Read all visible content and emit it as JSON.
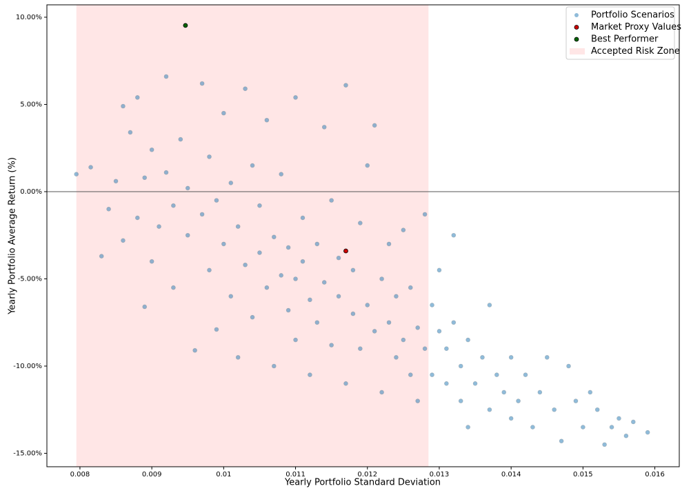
{
  "chart_data": {
    "type": "scatter",
    "xlabel": "Yearly Portfolio Standard Deviation",
    "ylabel": "Yearly Portfolio Average Return (%)",
    "xlim": [
      0.00754,
      0.01634
    ],
    "ylim": [
      -15.77,
      10.71
    ],
    "xticks": [
      0.008,
      0.009,
      0.01,
      0.011,
      0.012,
      0.013,
      0.014,
      0.015,
      0.016
    ],
    "yticks": [
      {
        "value": -15,
        "label": "-15.00%"
      },
      {
        "value": -10,
        "label": "-10.00%"
      },
      {
        "value": -5,
        "label": "-5.00%"
      },
      {
        "value": 0,
        "label": "0.00%"
      },
      {
        "value": 5,
        "label": "5.00%"
      },
      {
        "value": 10,
        "label": "10.00%"
      }
    ],
    "hline": 0,
    "legend": "upper right",
    "risk_zone": {
      "name": "Accepted Risk Zone",
      "color": "#ffe6e6",
      "xmin": 0.00795,
      "xmax": 0.01285
    },
    "series": [
      {
        "name": "Portfolio Scenarios",
        "color": "#1f77b4",
        "x": [
          0.00795,
          0.00815,
          0.0083,
          0.0084,
          0.0085,
          0.0086,
          0.0086,
          0.0087,
          0.0088,
          0.0088,
          0.0089,
          0.0089,
          0.009,
          0.009,
          0.0091,
          0.0092,
          0.0092,
          0.0093,
          0.0093,
          0.0094,
          0.0095,
          0.0095,
          0.0096,
          0.0097,
          0.0097,
          0.0098,
          0.0098,
          0.0099,
          0.0099,
          0.01,
          0.01,
          0.0101,
          0.0101,
          0.0102,
          0.0102,
          0.0103,
          0.0103,
          0.0104,
          0.0104,
          0.0105,
          0.0105,
          0.0106,
          0.0106,
          0.0107,
          0.0107,
          0.0108,
          0.0108,
          0.0109,
          0.0109,
          0.011,
          0.011,
          0.011,
          0.0111,
          0.0111,
          0.0112,
          0.0112,
          0.0113,
          0.0113,
          0.0114,
          0.0114,
          0.0115,
          0.0115,
          0.0116,
          0.0116,
          0.0117,
          0.0117,
          0.0118,
          0.0118,
          0.0119,
          0.0119,
          0.012,
          0.012,
          0.0121,
          0.0121,
          0.0122,
          0.0122,
          0.0123,
          0.0123,
          0.0124,
          0.0124,
          0.0125,
          0.0125,
          0.0126,
          0.0126,
          0.0127,
          0.0127,
          0.0128,
          0.0128,
          0.0129,
          0.0129,
          0.013,
          0.013,
          0.0131,
          0.0131,
          0.0132,
          0.0132,
          0.0133,
          0.0133,
          0.0134,
          0.0134,
          0.0135,
          0.0136,
          0.0137,
          0.0137,
          0.0138,
          0.0139,
          0.014,
          0.014,
          0.0141,
          0.0142,
          0.0143,
          0.0144,
          0.0145,
          0.0146,
          0.0147,
          0.0148,
          0.0149,
          0.015,
          0.0151,
          0.0152,
          0.0153,
          0.0154,
          0.0155,
          0.0156,
          0.0157,
          0.0159
        ],
        "y": [
          1.0,
          1.4,
          -3.7,
          -1.0,
          0.6,
          4.9,
          -2.8,
          3.4,
          5.4,
          -1.5,
          -6.6,
          0.8,
          2.4,
          -4.0,
          -2.0,
          6.6,
          1.1,
          -5.5,
          -0.8,
          3.0,
          -2.5,
          0.2,
          -9.1,
          6.2,
          -1.3,
          -4.5,
          2.0,
          -7.9,
          -0.5,
          4.5,
          -3.0,
          -6.0,
          0.5,
          -9.5,
          -2.0,
          5.9,
          -4.2,
          1.5,
          -7.2,
          -3.5,
          -0.8,
          4.1,
          -5.5,
          -10.0,
          -2.6,
          -4.8,
          1.0,
          -6.8,
          -3.2,
          5.4,
          -5.0,
          -8.5,
          -1.5,
          -4.0,
          -6.2,
          -10.5,
          -3.0,
          -7.5,
          3.7,
          -5.2,
          -0.5,
          -8.8,
          -6.0,
          -3.8,
          6.1,
          -11.0,
          -7.0,
          -4.5,
          -1.8,
          -9.0,
          -6.5,
          1.5,
          -8.0,
          3.8,
          -5.0,
          -11.5,
          -7.5,
          -3.0,
          -9.5,
          -6.0,
          -8.5,
          -2.2,
          -10.5,
          -5.5,
          -7.8,
          -12.0,
          -9.0,
          -1.3,
          -6.5,
          -10.5,
          -8.0,
          -4.5,
          -11.0,
          -9.0,
          -2.5,
          -7.5,
          -12.0,
          -10.0,
          -8.5,
          -13.5,
          -11.0,
          -9.5,
          -6.5,
          -12.5,
          -10.5,
          -11.5,
          -9.5,
          -13.0,
          -12.0,
          -10.5,
          -13.5,
          -11.5,
          -9.5,
          -12.5,
          -14.3,
          -10.0,
          -12.0,
          -13.5,
          -11.5,
          -12.5,
          -14.5,
          -13.5,
          -13.0,
          -14.0,
          -13.2,
          -13.8
        ]
      },
      {
        "name": "Market Proxy Values",
        "color": "#cc0000",
        "x": [
          0.0117
        ],
        "y": [
          -3.4
        ]
      },
      {
        "name": "Best Performer",
        "color": "#006400",
        "x": [
          0.009468
        ],
        "y": [
          9.53
        ]
      }
    ]
  }
}
